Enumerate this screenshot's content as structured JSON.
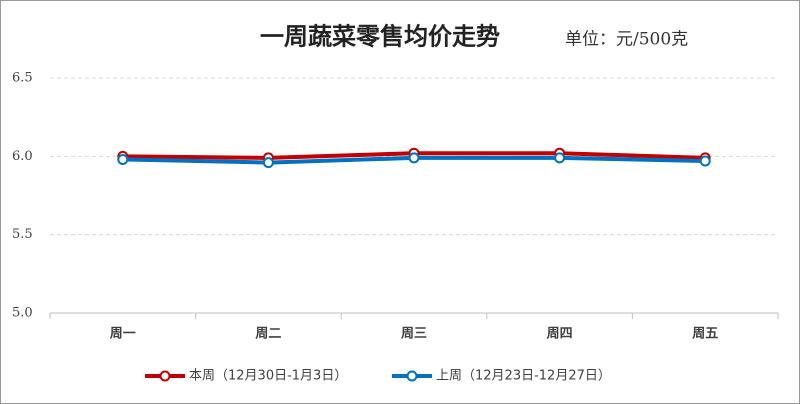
{
  "chart_data": {
    "type": "line",
    "title": "一周蔬菜零售均价走势",
    "subtitle": "单位：元/500克",
    "categories": [
      "周一",
      "周二",
      "周三",
      "周四",
      "周五"
    ],
    "series": [
      {
        "name": "本周（12月30日-1月3日）",
        "color": "#c00000",
        "values": [
          6.0,
          5.99,
          6.02,
          6.02,
          5.99
        ]
      },
      {
        "name": "上周（12月23日-12月27日）",
        "color": "#0070c0",
        "values": [
          5.98,
          5.96,
          5.99,
          5.99,
          5.97
        ]
      }
    ],
    "ylim": [
      5.0,
      6.5
    ],
    "yticks": [
      {
        "value": 5.0,
        "label": "5.0"
      },
      {
        "value": 5.5,
        "label": "5.5"
      },
      {
        "value": 6.0,
        "label": "6.0"
      },
      {
        "value": 6.5,
        "label": "6.5"
      }
    ],
    "grid": true,
    "legend": "bottom"
  }
}
